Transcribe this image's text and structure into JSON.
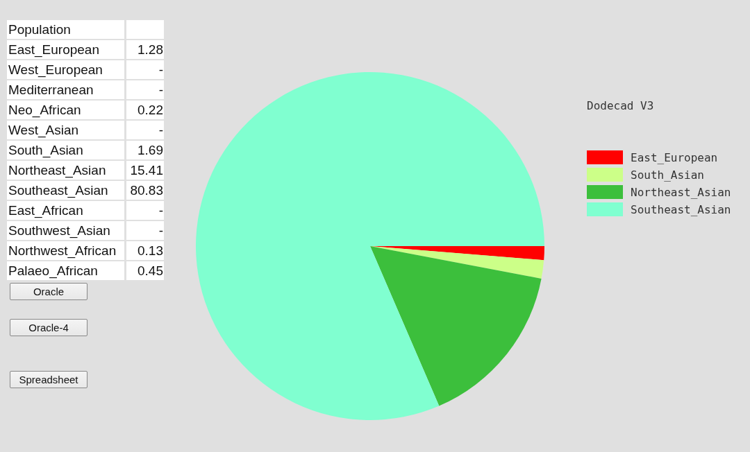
{
  "chart_data": [
    {
      "type": "other",
      "title": "Population",
      "categories": [
        "East_European",
        "West_European",
        "Mediterranean",
        "Neo_African",
        "West_Asian",
        "South_Asian",
        "Northeast_Asian",
        "Southeast_Asian",
        "East_African",
        "Southwest_Asian",
        "Northwest_African",
        "Palaeo_African"
      ],
      "annotations": [
        "1.28",
        "-",
        "-",
        "0.22",
        "-",
        "1.69",
        "15.41",
        "80.83",
        "-",
        "-",
        "0.13",
        "0.45",
        "Oracle",
        "Oracle-4",
        "Spreadsheet"
      ]
    },
    {
      "type": "pie",
      "title": "Dodecad V3",
      "categories": [
        "East_European",
        "South_Asian",
        "Northeast_Asian",
        "Southeast_Asian"
      ],
      "values": [
        1.28,
        1.69,
        15.41,
        80.83
      ],
      "colors": [
        "#ff0000",
        "#ccff88",
        "#3cbf3c",
        "#80ffd0"
      ],
      "legend": "right"
    }
  ]
}
